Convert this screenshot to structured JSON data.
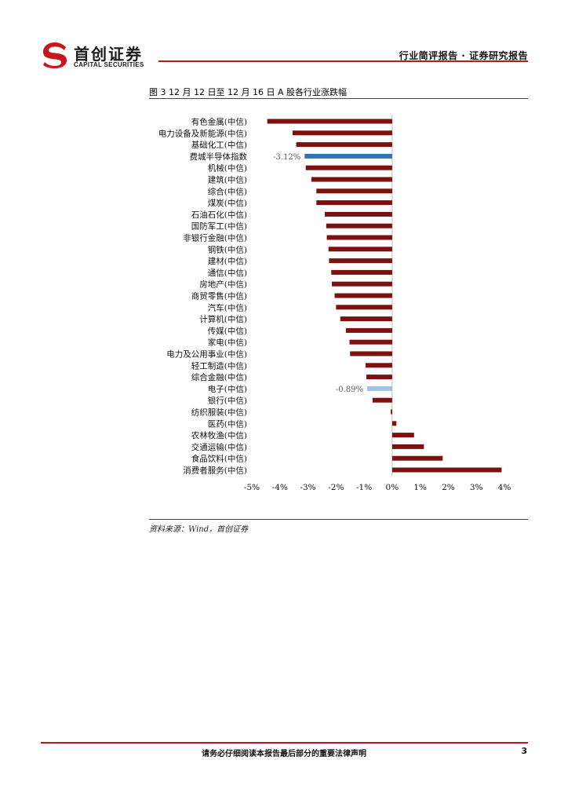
{
  "header": {
    "logo_cn": "首创证券",
    "logo_en": "CAPITAL SECURITIES",
    "title": "行业简评报告 · 证券研究报告"
  },
  "figure": {
    "title": "图 3 12 月 12 日至 12 月 16 日 A 股各行业涨跌幅",
    "source": "资料来源：Wind，首创证券"
  },
  "chart_data": {
    "type": "bar",
    "orientation": "horizontal",
    "categories": [
      "有色金属(中信)",
      "电力设备及新能源(中信)",
      "基础化工(中信)",
      "费城半导体指数",
      "机械(中信)",
      "建筑(中信)",
      "综合(中信)",
      "煤炭(中信)",
      "石油石化(中信)",
      "国防军工(中信)",
      "非银行金融(中信)",
      "钢铁(中信)",
      "建材(中信)",
      "通信(中信)",
      "房地产(中信)",
      "商贸零售(中信)",
      "汽车(中信)",
      "计算机(中信)",
      "传媒(中信)",
      "家电(中信)",
      "电力及公用事业(中信)",
      "轻工制造(中信)",
      "综合金融(中信)",
      "电子(中信)",
      "银行(中信)",
      "纺织服装(中信)",
      "医药(中信)",
      "农林牧渔(中信)",
      "交通运输(中信)",
      "食品饮料(中信)",
      "消费者服务(中信)"
    ],
    "values": [
      -4.45,
      -3.55,
      -3.42,
      -3.12,
      -3.08,
      -2.88,
      -2.7,
      -2.7,
      -2.4,
      -2.35,
      -2.33,
      -2.27,
      -2.25,
      -2.17,
      -2.15,
      -2.05,
      -2.0,
      -1.85,
      -1.65,
      -1.52,
      -1.5,
      -0.95,
      -0.92,
      -0.89,
      -0.7,
      -0.05,
      0.15,
      0.78,
      1.13,
      1.8,
      3.9
    ],
    "highlight": {
      "费城半导体指数": "#2e75b6",
      "电子(中信)": "#9dc3e6"
    },
    "data_labels": {
      "费城半导体指数": "-3.12%",
      "电子(中信)": "-0.89%"
    },
    "xlim": [
      -5,
      4
    ],
    "xticks": [
      "-5%",
      "-4%",
      "-3%",
      "-2%",
      "-1%",
      "0%",
      "1%",
      "2%",
      "3%",
      "4%"
    ],
    "bar_color": "#7b1111",
    "grid": false
  },
  "footer": {
    "disclaimer": "请务必仔细阅读本报告最后部分的重要法律声明",
    "page": "3"
  }
}
